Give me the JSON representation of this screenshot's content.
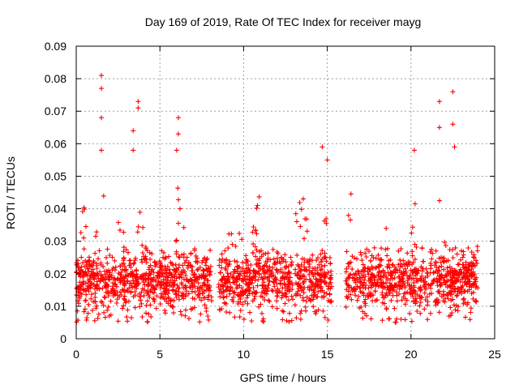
{
  "chart_data": {
    "type": "scatter",
    "title": "Day 169 of 2019, Rate Of TEC Index for receiver mayg",
    "xlabel": "GPS time / hours",
    "ylabel": "ROTI / TECUs",
    "xlim": [
      0,
      25
    ],
    "ylim": [
      0,
      0.09
    ],
    "xticks": [
      0,
      5,
      10,
      15,
      20,
      25
    ],
    "xtick_labels": [
      "0",
      "5",
      "10",
      "15",
      "20",
      "25"
    ],
    "yticks": [
      0,
      0.01,
      0.02,
      0.03,
      0.04,
      0.05,
      0.06,
      0.07,
      0.08,
      0.09
    ],
    "ytick_labels": [
      "0",
      "0.01",
      "0.02",
      "0.03",
      "0.04",
      "0.05",
      "0.06",
      "0.07",
      "0.08",
      "0.09"
    ],
    "grid": true,
    "marker": "+",
    "color": "#ff0000",
    "data_gaps_hours": [
      [
        8.1,
        8.5
      ],
      [
        15.3,
        16.1
      ]
    ],
    "peaks": [
      {
        "x": 1.5,
        "y": 0.081
      },
      {
        "x": 1.5,
        "y": 0.077
      },
      {
        "x": 1.5,
        "y": 0.068
      },
      {
        "x": 1.5,
        "y": 0.058
      },
      {
        "x": 3.4,
        "y": 0.064
      },
      {
        "x": 3.4,
        "y": 0.058
      },
      {
        "x": 3.7,
        "y": 0.073
      },
      {
        "x": 3.7,
        "y": 0.071
      },
      {
        "x": 6.1,
        "y": 0.068
      },
      {
        "x": 6.1,
        "y": 0.063
      },
      {
        "x": 6.0,
        "y": 0.058
      },
      {
        "x": 14.7,
        "y": 0.059
      },
      {
        "x": 15.0,
        "y": 0.055
      },
      {
        "x": 20.2,
        "y": 0.058
      },
      {
        "x": 21.7,
        "y": 0.073
      },
      {
        "x": 21.7,
        "y": 0.065
      },
      {
        "x": 22.5,
        "y": 0.076
      },
      {
        "x": 22.5,
        "y": 0.066
      },
      {
        "x": 22.6,
        "y": 0.059
      }
    ]
  }
}
